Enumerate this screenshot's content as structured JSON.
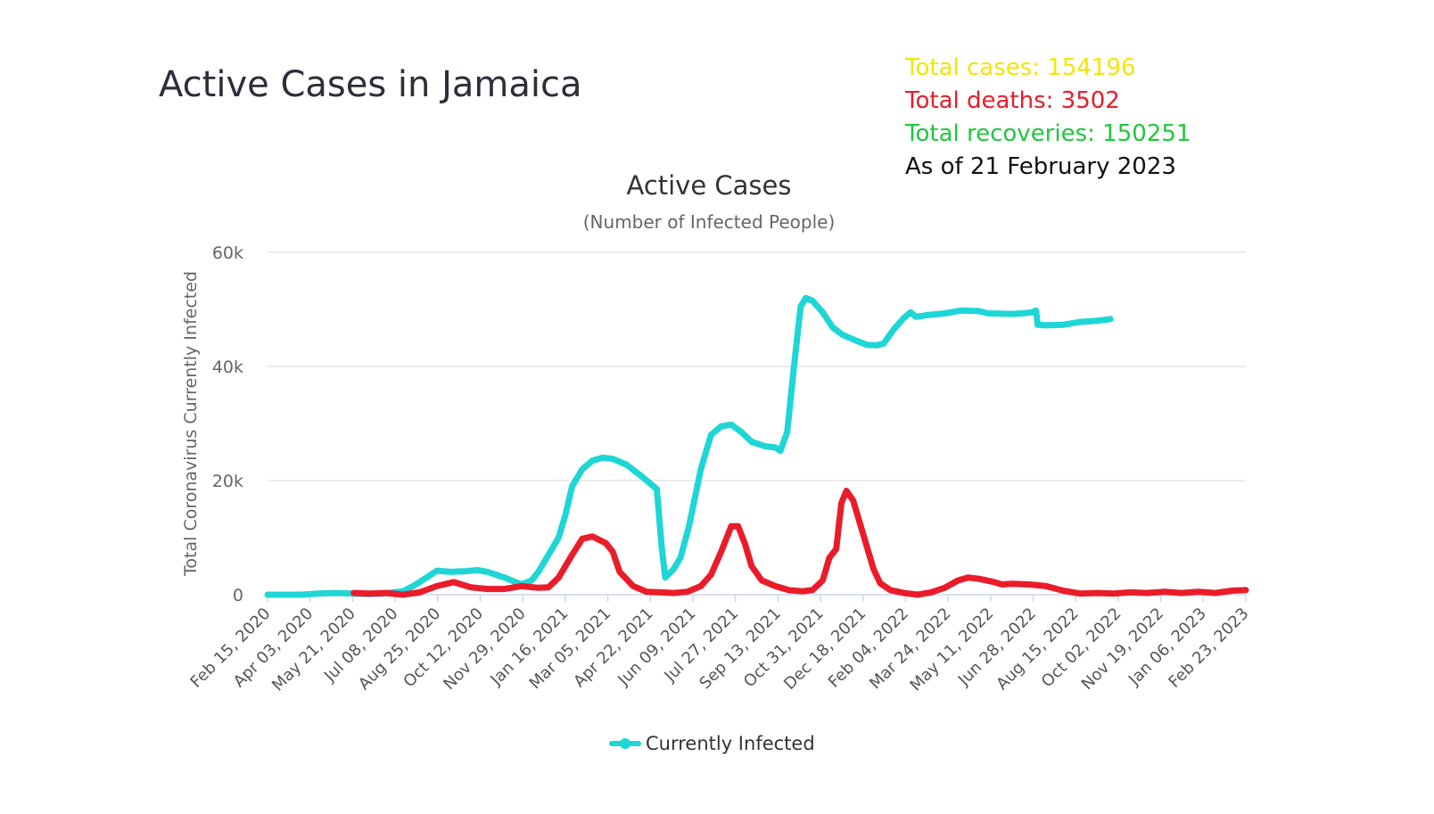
{
  "page": {
    "title": "Active Cases in Jamaica"
  },
  "stats": {
    "total_cases": {
      "label": "Total cases: 154196",
      "color": "#f2e600"
    },
    "total_deaths": {
      "label": "Total deaths: 3502",
      "color": "#ea1c2a"
    },
    "total_recoveries": {
      "label": "Total recoveries: 150251",
      "color": "#1fc83c"
    },
    "as_of": {
      "label": "As of 21 February 2023",
      "color": "#111111"
    }
  },
  "chart_data": {
    "type": "line",
    "title": "Active Cases",
    "subtitle": "(Number of Infected People)",
    "ylabel": "Total Coronavirus Currently Infected",
    "xlabel": "",
    "ylim": [
      0,
      60000
    ],
    "yticks": [
      0,
      20000,
      40000,
      60000
    ],
    "ytick_labels": [
      "0",
      "20k",
      "40k",
      "60k"
    ],
    "grid": true,
    "legend_position": "bottom-center",
    "categories": [
      "Feb 15, 2020",
      "Apr 03, 2020",
      "May 21, 2020",
      "Jul 08, 2020",
      "Aug 25, 2020",
      "Oct 12, 2020",
      "Nov 29, 2020",
      "Jan 16, 2021",
      "Mar 05, 2021",
      "Apr 22, 2021",
      "Jun 09, 2021",
      "Jul 27, 2021",
      "Sep 13, 2021",
      "Oct 31, 2021",
      "Dec 18, 2021",
      "Feb 04, 2022",
      "Mar 24, 2022",
      "May 11, 2022",
      "Jun 28, 2022",
      "Aug 15, 2022",
      "Oct 02, 2022",
      "Nov 19, 2022",
      "Jan 06, 2023",
      "Feb 23, 2023"
    ],
    "series": [
      {
        "name": "Currently Infected",
        "color": "#1ed6d6",
        "in_legend": true,
        "points": [
          [
            0,
            0
          ],
          [
            1,
            0
          ],
          [
            1.5,
            200
          ],
          [
            2,
            300
          ],
          [
            2.5,
            200
          ],
          [
            3,
            100
          ],
          [
            3.4,
            200
          ],
          [
            4,
            600
          ],
          [
            4.3,
            1500
          ],
          [
            4.7,
            3000
          ],
          [
            5,
            4200
          ],
          [
            5.4,
            4000
          ],
          [
            5.8,
            4100
          ],
          [
            6.2,
            4300
          ],
          [
            6.5,
            4000
          ],
          [
            7,
            3000
          ],
          [
            7.5,
            1800
          ],
          [
            7.8,
            2500
          ],
          [
            8,
            4000
          ],
          [
            8.3,
            7000
          ],
          [
            8.6,
            10000
          ],
          [
            8.8,
            14000
          ],
          [
            9,
            19000
          ],
          [
            9.3,
            22000
          ],
          [
            9.6,
            23500
          ],
          [
            9.9,
            24000
          ],
          [
            10.2,
            23800
          ],
          [
            10.6,
            22800
          ],
          [
            11,
            21000
          ],
          [
            11.3,
            19500
          ],
          [
            11.5,
            18500
          ],
          [
            11.65,
            8000
          ],
          [
            11.75,
            3000
          ],
          [
            12,
            4500
          ],
          [
            12.2,
            6500
          ],
          [
            12.45,
            12000
          ],
          [
            12.8,
            22000
          ],
          [
            13.1,
            28000
          ],
          [
            13.4,
            29500
          ],
          [
            13.7,
            29800
          ],
          [
            14,
            28500
          ],
          [
            14.3,
            26800
          ],
          [
            14.7,
            26000
          ],
          [
            15,
            25800
          ],
          [
            15.15,
            25200
          ],
          [
            15.35,
            28500
          ],
          [
            15.55,
            40000
          ],
          [
            15.75,
            50500
          ],
          [
            15.9,
            52000
          ],
          [
            16.1,
            51500
          ],
          [
            16.4,
            49500
          ],
          [
            16.7,
            46800
          ],
          [
            17,
            45500
          ],
          [
            17.4,
            44500
          ],
          [
            17.7,
            43800
          ],
          [
            18,
            43700
          ],
          [
            18.2,
            44000
          ],
          [
            18.5,
            46500
          ],
          [
            18.8,
            48500
          ],
          [
            19,
            49500
          ],
          [
            19.15,
            48700
          ],
          [
            19.5,
            49000
          ],
          [
            20,
            49300
          ],
          [
            20.5,
            49800
          ],
          [
            21,
            49700
          ],
          [
            21.3,
            49300
          ],
          [
            22,
            49200
          ],
          [
            22.3,
            49300
          ],
          [
            22.6,
            49500
          ],
          [
            22.7,
            49800
          ],
          [
            22.75,
            47300
          ],
          [
            23,
            47200
          ],
          [
            23.5,
            47300
          ],
          [
            24,
            47800
          ],
          [
            24.5,
            48000
          ],
          [
            24.9,
            48300
          ]
        ]
      },
      {
        "name": "",
        "color": "#ea1c2a",
        "in_legend": false,
        "points": [
          [
            2.55,
            300
          ],
          [
            3,
            200
          ],
          [
            3.5,
            300
          ],
          [
            4,
            0
          ],
          [
            4.5,
            400
          ],
          [
            5,
            1500
          ],
          [
            5.5,
            2200
          ],
          [
            6,
            1300
          ],
          [
            6.5,
            1000
          ],
          [
            7,
            1000
          ],
          [
            7.5,
            1500
          ],
          [
            8,
            1200
          ],
          [
            8.3,
            1300
          ],
          [
            8.6,
            3000
          ],
          [
            9,
            7000
          ],
          [
            9.3,
            9800
          ],
          [
            9.6,
            10200
          ],
          [
            10,
            9000
          ],
          [
            10.2,
            7500
          ],
          [
            10.4,
            4000
          ],
          [
            10.8,
            1500
          ],
          [
            11.2,
            500
          ],
          [
            11.6,
            400
          ],
          [
            12,
            300
          ],
          [
            12.4,
            500
          ],
          [
            12.8,
            1500
          ],
          [
            13.1,
            3500
          ],
          [
            13.4,
            7500
          ],
          [
            13.7,
            12000
          ],
          [
            13.9,
            12000
          ],
          [
            14.1,
            9000
          ],
          [
            14.3,
            5000
          ],
          [
            14.6,
            2500
          ],
          [
            15,
            1500
          ],
          [
            15.4,
            800
          ],
          [
            15.8,
            600
          ],
          [
            16.1,
            800
          ],
          [
            16.4,
            2500
          ],
          [
            16.6,
            6500
          ],
          [
            16.8,
            8000
          ],
          [
            16.95,
            16000
          ],
          [
            17.1,
            18200
          ],
          [
            17.3,
            16500
          ],
          [
            17.5,
            12500
          ],
          [
            17.7,
            8500
          ],
          [
            17.9,
            4500
          ],
          [
            18.1,
            2000
          ],
          [
            18.4,
            800
          ],
          [
            18.8,
            300
          ],
          [
            19.2,
            0
          ],
          [
            19.6,
            400
          ],
          [
            20,
            1200
          ],
          [
            20.4,
            2500
          ],
          [
            20.7,
            3000
          ],
          [
            21,
            2800
          ],
          [
            21.4,
            2300
          ],
          [
            21.7,
            1800
          ],
          [
            22,
            1900
          ],
          [
            22.5,
            1800
          ],
          [
            23,
            1500
          ],
          [
            23.5,
            700
          ],
          [
            24,
            200
          ],
          [
            24.5,
            300
          ],
          [
            25,
            200
          ],
          [
            25.5,
            400
          ],
          [
            26,
            300
          ],
          [
            26.5,
            500
          ],
          [
            27,
            300
          ],
          [
            27.5,
            500
          ],
          [
            28,
            300
          ],
          [
            28.5,
            700
          ],
          [
            28.9,
            800
          ]
        ]
      }
    ]
  }
}
